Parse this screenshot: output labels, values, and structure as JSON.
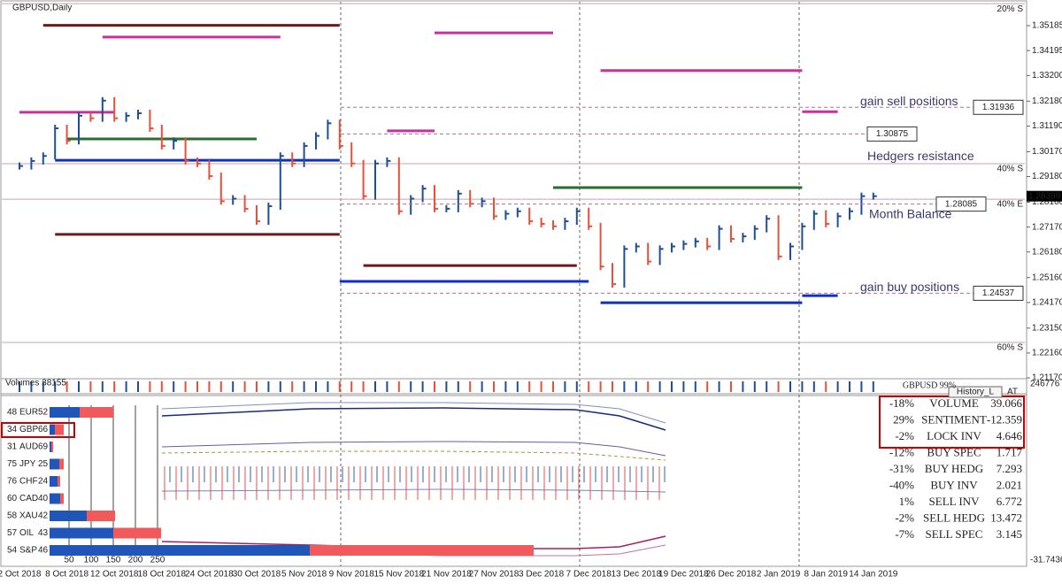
{
  "window_title": "GBPUSD,Daily",
  "price_chart": {
    "dates": [
      "2 Oct 2018",
      "8 Oct 2018",
      "12 Oct 2018",
      "18 Oct 2018",
      "24 Oct 2018",
      "30 Oct 2018",
      "5 Nov 2018",
      "9 Nov 2018",
      "15 Nov 2018",
      "21 Nov 2018",
      "27 Nov 2018",
      "3 Dec 2018",
      "7 Dec 2018",
      "13 Dec 2018",
      "19 Dec 2018",
      "26 Dec 2018",
      "2 Jan 2019",
      "8 Jan 2019",
      "14 Jan 2019"
    ],
    "closes": [
      1.296,
      1.298,
      1.3,
      1.311,
      1.306,
      1.316,
      1.315,
      1.322,
      1.315,
      1.316,
      1.317,
      1.311,
      1.304,
      1.306,
      1.298,
      1.297,
      1.292,
      1.282,
      1.283,
      1.279,
      1.274,
      1.28,
      1.3,
      1.297,
      1.304,
      1.308,
      1.313,
      1.304,
      1.297,
      1.284,
      1.297,
      1.298,
      1.278,
      1.283,
      1.287,
      1.279,
      1.279,
      1.285,
      1.281,
      1.282,
      1.276,
      1.277,
      1.278,
      1.274,
      1.273,
      1.272,
      1.274,
      1.278,
      1.272,
      1.256,
      1.249,
      1.263,
      1.264,
      1.258,
      1.263,
      1.264,
      1.265,
      1.266,
      1.264,
      1.271,
      1.267,
      1.268,
      1.271,
      1.275,
      1.26,
      1.264,
      1.272,
      1.277,
      1.273,
      1.276,
      1.278,
      1.284,
      1.284
    ],
    "up_color": "#1f4e96",
    "down_color": "#e8503a",
    "ylim": [
      1.20713,
      1.36206
    ],
    "yticks": [
      1.35185,
      1.34195,
      {
        "value": 1.332,
        "label": "1.33200"
      },
      {
        "value": 1.3218,
        "label": "1.32180"
      },
      {
        "value": 1.3119,
        "label": "1.31190"
      },
      {
        "value": 1.3017,
        "label": "1.30170"
      },
      {
        "value": 1.2918,
        "label": "1.29180"
      },
      {
        "value": 1.2816,
        "label": "1.28160"
      },
      {
        "value": 1.2717,
        "label": "1.27170"
      },
      {
        "value": 1.2618,
        "label": "1.26180"
      },
      {
        "value": 1.2516,
        "label": "1.25160"
      },
      {
        "value": 1.2417,
        "label": "1.24170"
      },
      {
        "value": 1.2315,
        "label": "1.23150"
      },
      {
        "value": 1.2216,
        "label": "1.22160"
      },
      {
        "value": 1.2117,
        "label": "1.21170"
      }
    ],
    "last_price": 1.28399,
    "levels": [
      {
        "label": "gain sell positions",
        "price": 1.31936
      },
      {
        "label": "Hedgers resistance",
        "price": 1.30875
      },
      {
        "label": "Month Balance",
        "price": 1.28085
      },
      {
        "label": "gain buy positions",
        "price": 1.24537
      }
    ],
    "zones": [
      {
        "label": "20% S",
        "price": 1.3606
      },
      {
        "label": "40% S",
        "price": 1.2969
      },
      {
        "label": "40% E",
        "price": 1.2828
      },
      {
        "label": "60% S",
        "price": 1.2258
      }
    ],
    "segments": [
      {
        "price": 1.3473,
        "from": 7,
        "to": 22,
        "color": "#c8309a"
      },
      {
        "price": 1.349,
        "from": 35,
        "to": 45,
        "color": "#c8309a"
      },
      {
        "price": 1.334,
        "from": 49,
        "to": 66,
        "color": "#c8309a"
      },
      {
        "price": 1.3174,
        "from": 0,
        "to": 8,
        "color": "#c8309a"
      },
      {
        "price": 1.31,
        "from": 31,
        "to": 35,
        "color": "#c8309a"
      },
      {
        "price": 1.3176,
        "from": 66,
        "to": 69,
        "color": "#c8309a"
      },
      {
        "price": 1.2983,
        "from": 3,
        "to": 27,
        "color": "#1030c0"
      },
      {
        "price": 1.2501,
        "from": 27,
        "to": 48,
        "color": "#1030c0"
      },
      {
        "price": 1.2416,
        "from": 49,
        "to": 66,
        "color": "#1030c0"
      },
      {
        "price": 1.2444,
        "from": 66,
        "to": 69,
        "color": "#1030c0"
      },
      {
        "price": 1.352,
        "from": 2,
        "to": 27,
        "color": "#6b1a1a"
      },
      {
        "price": 1.2688,
        "from": 3,
        "to": 27,
        "color": "#6b1a1a"
      },
      {
        "price": 1.2564,
        "from": 29,
        "to": 47,
        "color": "#6b1a1a"
      },
      {
        "price": 1.3068,
        "from": 4,
        "to": 20,
        "color": "#2e6b2e"
      },
      {
        "price": 1.2874,
        "from": 45,
        "to": 66,
        "color": "#2e6b2e"
      }
    ]
  },
  "volume_panel": {
    "label": "Volumes 38155",
    "symbol_strength": "GBPUSD 99%",
    "axis_top": "246776",
    "axis_bottom": "-31.7436"
  },
  "buttons": [
    "History_L",
    "AT"
  ],
  "currency_panel": {
    "xticks": [
      50,
      100,
      150,
      200,
      250
    ],
    "xlim": [
      0,
      250
    ],
    "rows": [
      {
        "buy": 48,
        "code": "EUR",
        "sell": 52,
        "blue": 68,
        "red": 76
      },
      {
        "buy": 34,
        "code": "GBP",
        "sell": 66,
        "blue": 12,
        "red": 20
      },
      {
        "buy": 31,
        "code": "AUD",
        "sell": 69,
        "blue": 4,
        "red": 4
      },
      {
        "buy": 75,
        "code": "JPY",
        "sell": 25,
        "blue": 22,
        "red": 10
      },
      {
        "buy": 76,
        "code": "CHF",
        "sell": 24,
        "blue": 18,
        "red": 6
      },
      {
        "buy": 60,
        "code": "CAD",
        "sell": 40,
        "blue": 24,
        "red": 8
      },
      {
        "buy": 58,
        "code": "XAU",
        "sell": 42,
        "blue": 84,
        "red": 64
      },
      {
        "buy": 57,
        "code": "OIL",
        "sell": 43,
        "blue": 144,
        "red": 108
      },
      {
        "buy": 54,
        "code": "S&P",
        "sell": 46,
        "blue": 588,
        "red": 506
      }
    ]
  },
  "sentiment_table": [
    {
      "pct": "-18%",
      "name": "VOLUME",
      "value": "39.066",
      "color": "#111111",
      "pct_color": "#111111"
    },
    {
      "pct": "29%",
      "name": "SENTIMENT",
      "value": "-12.359",
      "color": "#e0504c",
      "pct_color": "#e0504c"
    },
    {
      "pct": "-2%",
      "name": "LOCK INV",
      "value": "4.646",
      "color": "#a08400",
      "pct_color": "#111111"
    },
    {
      "pct": "-12%",
      "name": "BUY SPEC",
      "value": "1.717",
      "color": "#7080b0",
      "pct_color": "#d05050"
    },
    {
      "pct": "-31%",
      "name": "BUY HEDG",
      "value": "7.293",
      "color": "#1a2a7a",
      "pct_color": "#d05050"
    },
    {
      "pct": "-40%",
      "name": "BUY INV",
      "value": "2.021",
      "color": "#6070a0",
      "pct_color": "#d05050"
    },
    {
      "pct": "1%",
      "name": "SELL INV",
      "value": "6.772",
      "color": "#c03070",
      "pct_color": "#d05050"
    },
    {
      "pct": "-2%",
      "name": "SELL HEDG",
      "value": "13.472",
      "color": "#a0206a",
      "pct_color": "#3050a0"
    },
    {
      "pct": "-7%",
      "name": "SELL SPEC",
      "value": "3.145",
      "color": "#d070b0",
      "pct_color": "#3050a0"
    }
  ]
}
